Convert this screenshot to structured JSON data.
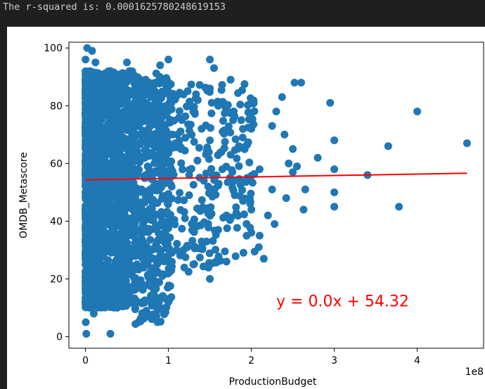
{
  "output": {
    "text": "The r-squared is: 0.0001625780248619153"
  },
  "colors": {
    "background": "#1f1f1f",
    "points": "#1f77b4",
    "regression_line": "#ff0000",
    "annotation": "#ff0000"
  },
  "chart_data": {
    "type": "scatter",
    "xlabel": "ProductionBudget",
    "ylabel": "OMDB_Metascore",
    "x_offset_label": "1e8",
    "xlim": [
      -20000000.0,
      480000000.0
    ],
    "ylim": [
      -4,
      102
    ],
    "x_ticks": [
      0,
      100000000,
      200000000,
      300000000,
      400000000
    ],
    "x_tick_labels": [
      "0",
      "1",
      "2",
      "3",
      "4"
    ],
    "y_ticks": [
      0,
      20,
      40,
      60,
      80,
      100
    ],
    "y_tick_labels": [
      "0",
      "20",
      "40",
      "60",
      "80",
      "100"
    ],
    "annotation": {
      "text": "y = 0.0x + 54.32",
      "x": 230000000,
      "y": 12
    },
    "regression_line": {
      "slope": 5e-09,
      "intercept": 54.32,
      "x_range": [
        0,
        460000000
      ]
    },
    "series": [
      {
        "points": [
          [
            460000000,
            67
          ],
          [
            400000000,
            78
          ],
          [
            378000000,
            45
          ],
          [
            365000000,
            66
          ],
          [
            340000000,
            56
          ],
          [
            300000000,
            68
          ],
          [
            300000000,
            58
          ],
          [
            300000000,
            50
          ],
          [
            300000000,
            45
          ],
          [
            295000000,
            81
          ],
          [
            280000000,
            62
          ],
          [
            265000000,
            51
          ],
          [
            263000000,
            44
          ],
          [
            260000000,
            88
          ],
          [
            255000000,
            59
          ],
          [
            252000000,
            88
          ],
          [
            250000000,
            65
          ],
          [
            250000000,
            57
          ],
          [
            245000000,
            60
          ],
          [
            242000000,
            48
          ],
          [
            240000000,
            70
          ],
          [
            237000000,
            83
          ],
          [
            230000000,
            78
          ],
          [
            228000000,
            39
          ],
          [
            225000000,
            51
          ],
          [
            225000000,
            73
          ],
          [
            220000000,
            42
          ],
          [
            215000000,
            27
          ],
          [
            210000000,
            35
          ],
          [
            209000000,
            31
          ],
          [
            210000000,
            58
          ],
          [
            200000000,
            36
          ],
          [
            200000000,
            44
          ],
          [
            200000000,
            72
          ],
          [
            195000000,
            55
          ],
          [
            190000000,
            47
          ],
          [
            185000000,
            66
          ],
          [
            180000000,
            49
          ],
          [
            178000000,
            75
          ],
          [
            175000000,
            63
          ],
          [
            175000000,
            89
          ],
          [
            170000000,
            42
          ],
          [
            170000000,
            26
          ],
          [
            165000000,
            58
          ],
          [
            160000000,
            80
          ],
          [
            160000000,
            37
          ],
          [
            155000000,
            93
          ],
          [
            150000000,
            20
          ],
          [
            150000000,
            96
          ],
          [
            150000000,
            86
          ],
          [
            150000000,
            68
          ],
          [
            148000000,
            52
          ],
          [
            145000000,
            44
          ],
          [
            140000000,
            72
          ],
          [
            140000000,
            33
          ],
          [
            135000000,
            61
          ],
          [
            130000000,
            25
          ],
          [
            130000000,
            78
          ],
          [
            125000000,
            56
          ],
          [
            125000000,
            49
          ],
          [
            120000000,
            41
          ],
          [
            115000000,
            65
          ],
          [
            110000000,
            30
          ],
          [
            105000000,
            70
          ],
          [
            100000000,
            12
          ],
          [
            100000000,
            88
          ],
          [
            100000000,
            96
          ],
          [
            95000000,
            53
          ],
          [
            90000000,
            94
          ],
          [
            85000000,
            22
          ],
          [
            85000000,
            62
          ],
          [
            80000000,
            47
          ],
          [
            80000000,
            75
          ],
          [
            75000000,
            59
          ],
          [
            70000000,
            38
          ],
          [
            68000000,
            17
          ],
          [
            65000000,
            70
          ],
          [
            60000000,
            88
          ],
          [
            58000000,
            28
          ],
          [
            55000000,
            62
          ],
          [
            52000000,
            45
          ],
          [
            50000000,
            95
          ],
          [
            48000000,
            35
          ],
          [
            45000000,
            77
          ],
          [
            42000000,
            55
          ],
          [
            40000000,
            20
          ],
          [
            38000000,
            67
          ],
          [
            35000000,
            12
          ],
          [
            33000000,
            84
          ],
          [
            30000000,
            1
          ],
          [
            30000000,
            92
          ],
          [
            28000000,
            40
          ],
          [
            25000000,
            60
          ],
          [
            22000000,
            15
          ],
          [
            20000000,
            88
          ],
          [
            18000000,
            72
          ],
          [
            15000000,
            30
          ],
          [
            12000000,
            95
          ],
          [
            10000000,
            8
          ],
          [
            9000000,
            52
          ],
          [
            8000000,
            99
          ],
          [
            6000000,
            70
          ],
          [
            5000000,
            25
          ],
          [
            4000000,
            85
          ],
          [
            3000000,
            44
          ],
          [
            2000000,
            100
          ],
          [
            1500000,
            60
          ],
          [
            1000000,
            1
          ],
          [
            1000000,
            90
          ],
          [
            800000,
            33
          ],
          [
            500000,
            76
          ],
          [
            300000,
            5
          ],
          [
            200000,
            48
          ],
          [
            100000,
            96
          ],
          [
            50000,
            18
          ]
        ]
      }
    ]
  }
}
